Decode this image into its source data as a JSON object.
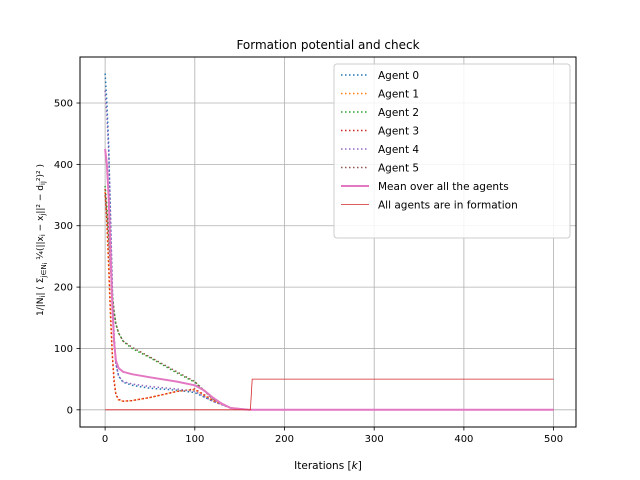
{
  "chart_data": {
    "type": "line",
    "title": "Formation potential and check",
    "xlabel": "Iterations [k]",
    "ylabel": "1/|N_i| ( Σ_{j∈N_i} 1/4 (||x_i^k − x_j^k||² − d_ij²)² )",
    "xlim": [
      -28,
      525
    ],
    "ylim": [
      -28,
      575
    ],
    "xticks": [
      0,
      100,
      200,
      300,
      400,
      500
    ],
    "yticks": [
      0,
      100,
      200,
      300,
      400,
      500
    ],
    "grid": true,
    "legend_position": "upper-right",
    "series": [
      {
        "name": "Agent 0",
        "color": "#1f77b4",
        "style": "dotted",
        "points": [
          [
            0,
            548
          ],
          [
            2,
            500
          ],
          [
            4,
            430
          ],
          [
            6,
            310
          ],
          [
            8,
            200
          ],
          [
            10,
            120
          ],
          [
            12,
            75
          ],
          [
            15,
            55
          ],
          [
            20,
            45
          ],
          [
            30,
            40
          ],
          [
            50,
            35
          ],
          [
            80,
            32
          ],
          [
            100,
            28
          ],
          [
            120,
            14
          ],
          [
            140,
            3
          ],
          [
            160,
            0
          ],
          [
            500,
            0
          ]
        ]
      },
      {
        "name": "Agent 1",
        "color": "#ff7f0e",
        "style": "dotted",
        "points": [
          [
            0,
            355
          ],
          [
            2,
            300
          ],
          [
            4,
            230
          ],
          [
            6,
            150
          ],
          [
            8,
            90
          ],
          [
            10,
            50
          ],
          [
            12,
            25
          ],
          [
            15,
            16
          ],
          [
            20,
            14
          ],
          [
            30,
            15
          ],
          [
            50,
            20
          ],
          [
            80,
            30
          ],
          [
            100,
            33
          ],
          [
            120,
            15
          ],
          [
            140,
            3
          ],
          [
            160,
            0
          ],
          [
            500,
            0
          ]
        ]
      },
      {
        "name": "Agent 2",
        "color": "#2ca02c",
        "style": "dotted",
        "points": [
          [
            0,
            365
          ],
          [
            2,
            330
          ],
          [
            4,
            290
          ],
          [
            6,
            240
          ],
          [
            8,
            190
          ],
          [
            10,
            160
          ],
          [
            12,
            140
          ],
          [
            15,
            125
          ],
          [
            20,
            112
          ],
          [
            30,
            100
          ],
          [
            50,
            85
          ],
          [
            80,
            60
          ],
          [
            100,
            45
          ],
          [
            120,
            18
          ],
          [
            140,
            3
          ],
          [
            160,
            0
          ],
          [
            500,
            0
          ]
        ]
      },
      {
        "name": "Agent 3",
        "color": "#d62728",
        "style": "dotted",
        "points": [
          [
            0,
            360
          ],
          [
            2,
            310
          ],
          [
            4,
            240
          ],
          [
            6,
            160
          ],
          [
            8,
            90
          ],
          [
            10,
            45
          ],
          [
            12,
            25
          ],
          [
            15,
            17
          ],
          [
            20,
            14
          ],
          [
            30,
            15
          ],
          [
            50,
            20
          ],
          [
            80,
            30
          ],
          [
            100,
            34
          ],
          [
            120,
            16
          ],
          [
            140,
            3
          ],
          [
            160,
            0
          ],
          [
            500,
            0
          ]
        ]
      },
      {
        "name": "Agent 4",
        "color": "#9467bd",
        "style": "dotted",
        "points": [
          [
            0,
            520
          ],
          [
            2,
            480
          ],
          [
            4,
            420
          ],
          [
            6,
            320
          ],
          [
            8,
            200
          ],
          [
            10,
            120
          ],
          [
            12,
            75
          ],
          [
            15,
            55
          ],
          [
            20,
            46
          ],
          [
            30,
            42
          ],
          [
            50,
            38
          ],
          [
            80,
            34
          ],
          [
            100,
            30
          ],
          [
            120,
            14
          ],
          [
            140,
            3
          ],
          [
            160,
            0
          ],
          [
            500,
            0
          ]
        ]
      },
      {
        "name": "Agent 5",
        "color": "#8c564b",
        "style": "dotted",
        "points": [
          [
            0,
            350
          ],
          [
            2,
            320
          ],
          [
            4,
            280
          ],
          [
            6,
            230
          ],
          [
            8,
            185
          ],
          [
            10,
            160
          ],
          [
            12,
            140
          ],
          [
            15,
            125
          ],
          [
            20,
            112
          ],
          [
            30,
            102
          ],
          [
            50,
            86
          ],
          [
            80,
            62
          ],
          [
            100,
            46
          ],
          [
            120,
            18
          ],
          [
            140,
            3
          ],
          [
            160,
            0
          ],
          [
            500,
            0
          ]
        ]
      },
      {
        "name": "Mean over all the agents",
        "color": "#e377c2",
        "style": "solid-thick",
        "points": [
          [
            0,
            425
          ],
          [
            2,
            400
          ],
          [
            4,
            345
          ],
          [
            6,
            260
          ],
          [
            8,
            170
          ],
          [
            10,
            110
          ],
          [
            12,
            80
          ],
          [
            15,
            68
          ],
          [
            20,
            62
          ],
          [
            30,
            58
          ],
          [
            50,
            53
          ],
          [
            80,
            46
          ],
          [
            100,
            40
          ],
          [
            110,
            32
          ],
          [
            120,
            20
          ],
          [
            130,
            10
          ],
          [
            140,
            3
          ],
          [
            160,
            0
          ],
          [
            500,
            0
          ]
        ]
      },
      {
        "name": "All agents are in formation",
        "color": "#d62728",
        "style": "solid-thin",
        "points": [
          [
            0,
            0
          ],
          [
            162,
            0
          ],
          [
            164,
            50
          ],
          [
            500,
            50
          ]
        ]
      }
    ]
  }
}
